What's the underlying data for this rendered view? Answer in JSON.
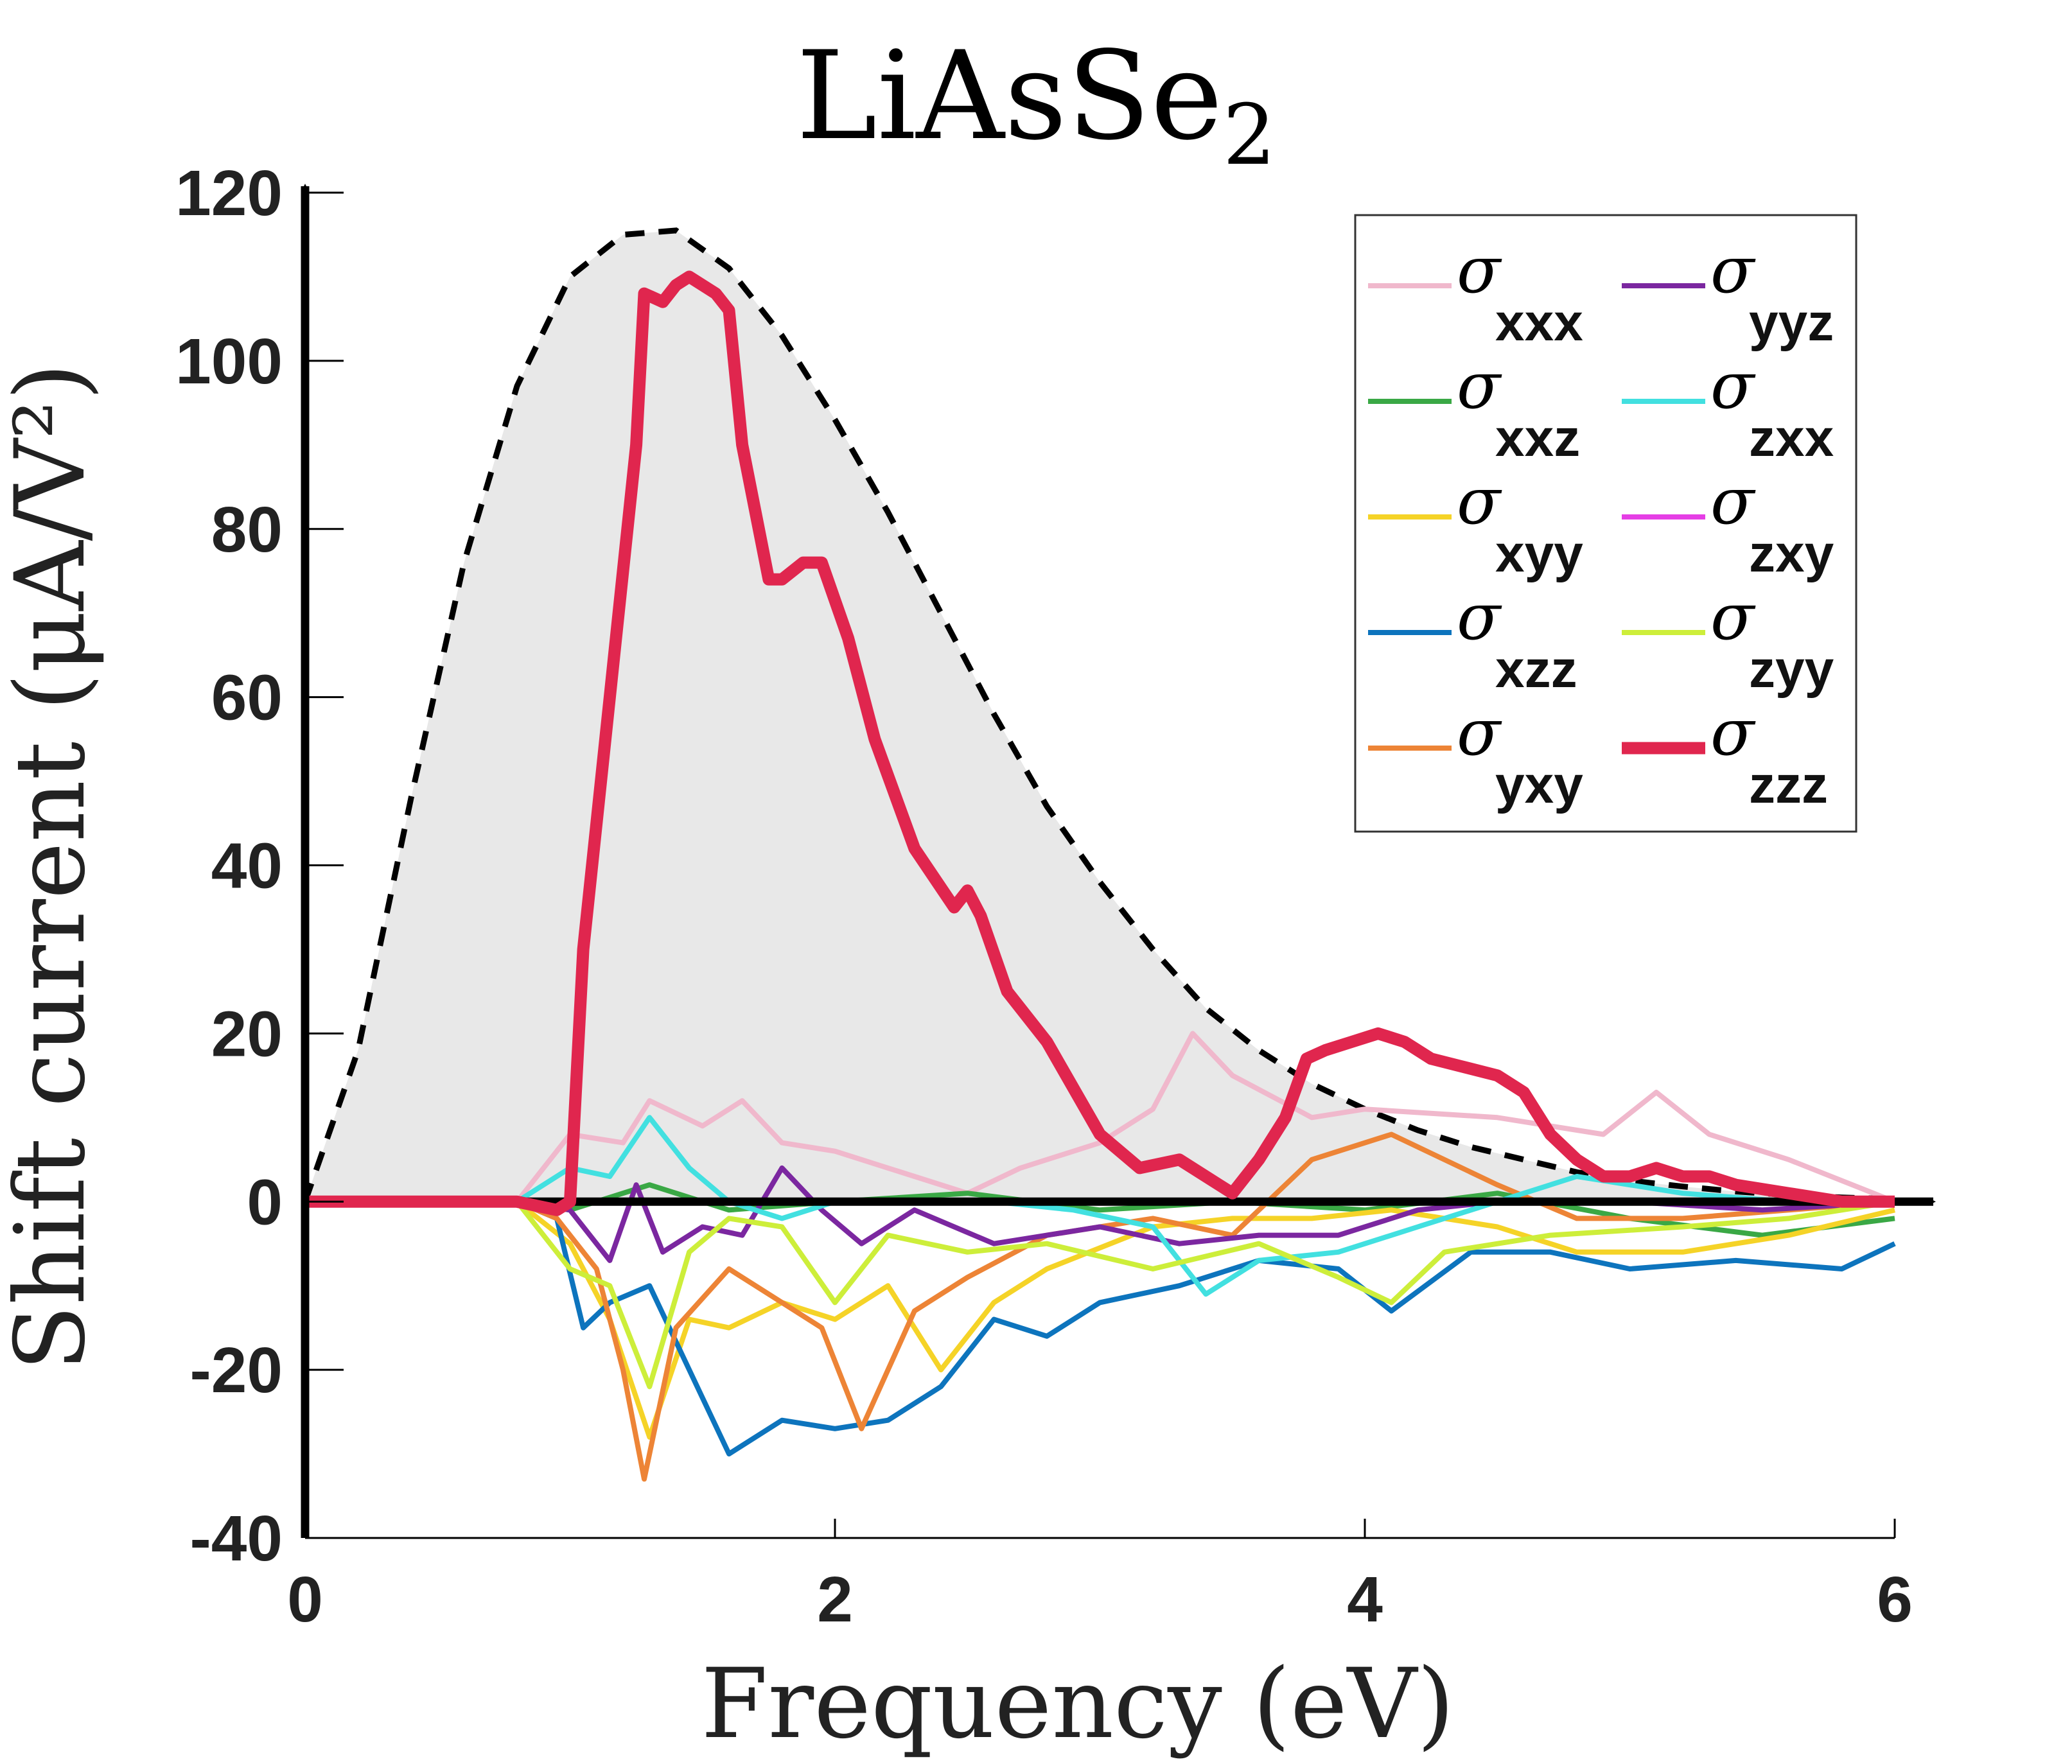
{
  "chart_data": {
    "type": "line",
    "title": "LiAsSe",
    "title_subscript": "2",
    "xlabel": "Frequency (eV)",
    "ylabel": "Shift current (μA/V²)",
    "xlim": [
      0,
      6
    ],
    "ylim": [
      -40,
      120
    ],
    "x_ticks": [
      "0",
      "2",
      "4",
      "6"
    ],
    "y_ticks": [
      "-40",
      "-20",
      "0",
      "20",
      "40",
      "60",
      "80",
      "100",
      "120"
    ],
    "x_tick_values": [
      0,
      2,
      4,
      6
    ],
    "y_tick_values": [
      -40,
      -20,
      0,
      20,
      40,
      60,
      80,
      100,
      120
    ],
    "legend_position": "top-right",
    "legend_symbol": "σ",
    "envelope": {
      "name": "upper-bound",
      "style": "dashed, gray-filled",
      "x": [
        0,
        0.2,
        0.4,
        0.6,
        0.8,
        1.0,
        1.2,
        1.4,
        1.6,
        1.8,
        2.0,
        2.2,
        2.4,
        2.6,
        2.8,
        3.0,
        3.2,
        3.4,
        3.6,
        3.8,
        4.0,
        4.2,
        4.4,
        4.6,
        4.8,
        5.0,
        5.2,
        5.4,
        5.6,
        5.8,
        6.0
      ],
      "y": [
        0,
        18,
        48,
        76,
        97,
        110,
        115,
        115.5,
        111,
        103,
        93,
        82,
        70,
        58,
        47,
        38,
        30,
        23,
        18,
        14,
        11,
        8.5,
        6.5,
        5,
        3.5,
        2.5,
        1.8,
        1.2,
        0.8,
        0.5,
        0.3
      ]
    },
    "series": [
      {
        "name": "σxxx",
        "subscript": "xxx",
        "color": "#f0b8cc",
        "x": [
          0,
          0.8,
          1.0,
          1.2,
          1.3,
          1.5,
          1.65,
          1.8,
          2.0,
          2.2,
          2.5,
          2.7,
          3.0,
          3.2,
          3.35,
          3.5,
          3.8,
          4.0,
          4.5,
          4.9,
          5.1,
          5.3,
          5.6,
          6.0
        ],
        "y": [
          0,
          0,
          8,
          7,
          12,
          9,
          12,
          7,
          6,
          4,
          1,
          4,
          7,
          11,
          20,
          15,
          10,
          11,
          10,
          8,
          13,
          8,
          5,
          0
        ]
      },
      {
        "name": "σxxz",
        "subscript": "xxz",
        "color": "#3aa845",
        "x": [
          0,
          0.8,
          1.0,
          1.3,
          1.6,
          2.0,
          2.5,
          3.0,
          3.5,
          4.0,
          4.5,
          5.0,
          5.5,
          6.0
        ],
        "y": [
          0,
          0,
          -1,
          2,
          -1,
          0,
          1,
          -1,
          0,
          -1,
          1,
          -2,
          -4,
          -2
        ]
      },
      {
        "name": "σxyy",
        "subscript": "xyy",
        "color": "#f5d327",
        "x": [
          0,
          0.8,
          1.0,
          1.15,
          1.3,
          1.45,
          1.6,
          1.8,
          2.0,
          2.2,
          2.4,
          2.6,
          2.8,
          3.2,
          3.5,
          3.8,
          4.1,
          4.5,
          4.8,
          5.2,
          5.6,
          6.0
        ],
        "y": [
          0,
          0,
          -5,
          -14,
          -28,
          -14,
          -15,
          -12,
          -14,
          -10,
          -20,
          -12,
          -8,
          -3,
          -2,
          -2,
          -1,
          -3,
          -6,
          -6,
          -4,
          -1
        ]
      },
      {
        "name": "σxzz",
        "subscript": "xzz",
        "color": "#0d74bd",
        "x": [
          0,
          0.8,
          0.95,
          1.05,
          1.15,
          1.3,
          1.45,
          1.6,
          1.8,
          2.0,
          2.2,
          2.4,
          2.6,
          2.8,
          3.0,
          3.3,
          3.6,
          3.9,
          4.1,
          4.4,
          4.7,
          5.0,
          5.4,
          5.8,
          6.0
        ],
        "y": [
          0,
          0,
          -2,
          -15,
          -12,
          -10,
          -20,
          -30,
          -26,
          -27,
          -26,
          -22,
          -14,
          -16,
          -12,
          -10,
          -7,
          -8,
          -13,
          -6,
          -6,
          -8,
          -7,
          -8,
          -5
        ]
      },
      {
        "name": "σyxy",
        "subscript": "yxy",
        "color": "#ed8436",
        "x": [
          0,
          0.8,
          0.95,
          1.1,
          1.2,
          1.28,
          1.4,
          1.6,
          1.8,
          1.95,
          2.1,
          2.3,
          2.5,
          2.8,
          3.2,
          3.5,
          3.8,
          4.1,
          4.5,
          4.8,
          5.2,
          5.6,
          6.0
        ],
        "y": [
          0,
          0,
          -2,
          -8,
          -20,
          -33,
          -15,
          -8,
          -12,
          -15,
          -27,
          -13,
          -9,
          -4,
          -2,
          -4,
          5,
          8,
          2,
          -2,
          -2,
          -1,
          0
        ]
      },
      {
        "name": "σyyz",
        "subscript": "yyz",
        "color": "#7b27a0",
        "x": [
          0,
          0.8,
          1.0,
          1.15,
          1.25,
          1.35,
          1.5,
          1.65,
          1.8,
          1.95,
          2.1,
          2.3,
          2.6,
          3.0,
          3.3,
          3.6,
          3.9,
          4.2,
          4.5,
          5.0,
          5.5,
          6.0
        ],
        "y": [
          0,
          0,
          -1,
          -7,
          2,
          -6,
          -3,
          -4,
          4,
          -1,
          -5,
          -1,
          -5,
          -3,
          -5,
          -4,
          -4,
          -1,
          0,
          0,
          -1,
          0
        ]
      },
      {
        "name": "σzxx",
        "subscript": "zxx",
        "color": "#42e0e0",
        "x": [
          0,
          0.8,
          1.0,
          1.15,
          1.3,
          1.45,
          1.6,
          1.8,
          2.0,
          2.3,
          2.6,
          2.9,
          3.2,
          3.4,
          3.6,
          3.9,
          4.2,
          4.5,
          4.8,
          5.2,
          5.6,
          6.0
        ],
        "y": [
          0,
          0,
          4,
          3,
          10,
          4,
          0,
          -2,
          0,
          0,
          0,
          -1,
          -3,
          -11,
          -7,
          -6,
          -3,
          0,
          3,
          1,
          0,
          0
        ]
      },
      {
        "name": "σzxy",
        "subscript": "zxy",
        "color": "#e53ee5",
        "x": [
          0,
          6.0
        ],
        "y": [
          0,
          0
        ]
      },
      {
        "name": "σzyy",
        "subscript": "zyy",
        "color": "#cdee3a",
        "x": [
          0,
          0.8,
          1.0,
          1.15,
          1.3,
          1.45,
          1.6,
          1.8,
          2.0,
          2.2,
          2.5,
          2.8,
          3.2,
          3.6,
          3.9,
          4.1,
          4.3,
          4.7,
          5.2,
          5.6,
          6.0
        ],
        "y": [
          0,
          0,
          -8,
          -10,
          -22,
          -6,
          -2,
          -3,
          -12,
          -4,
          -6,
          -5,
          -8,
          -5,
          -9,
          -12,
          -6,
          -4,
          -3,
          -2,
          0
        ]
      },
      {
        "name": "σzzz",
        "subscript": "zzz",
        "color": "#e0264e",
        "thick": true,
        "x": [
          0,
          0.8,
          0.95,
          1.0,
          1.05,
          1.15,
          1.25,
          1.28,
          1.35,
          1.4,
          1.45,
          1.55,
          1.6,
          1.65,
          1.75,
          1.8,
          1.88,
          1.95,
          2.05,
          2.15,
          2.3,
          2.45,
          2.5,
          2.55,
          2.65,
          2.8,
          3.0,
          3.15,
          3.3,
          3.45,
          3.5,
          3.6,
          3.7,
          3.78,
          3.85,
          3.95,
          4.05,
          4.15,
          4.25,
          4.5,
          4.6,
          4.7,
          4.8,
          4.9,
          5.0,
          5.1,
          5.2,
          5.3,
          5.4,
          5.6,
          5.8,
          6.0
        ],
        "y": [
          0,
          0,
          -1,
          0,
          30,
          60,
          90,
          108,
          107,
          109,
          110,
          108,
          106,
          90,
          74,
          74,
          76,
          76,
          67,
          55,
          42,
          35,
          37,
          34,
          25,
          19,
          8,
          4,
          5,
          2,
          1,
          5,
          10,
          17,
          18,
          19,
          20,
          19,
          17,
          15,
          13,
          8,
          5,
          3,
          3,
          4,
          3,
          3,
          2,
          1,
          0,
          0
        ]
      }
    ]
  }
}
